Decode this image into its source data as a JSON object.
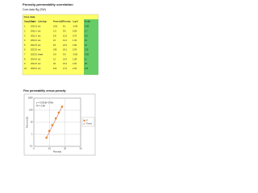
{
  "header": {
    "title": "Porosity-permeability correlation",
    "subtitle": "Core data Rg (SW)"
  },
  "table": {
    "caption": "Core data",
    "columns": [
      "Sample no",
      "Depth",
      "Lithology",
      "Perm (mD)",
      "Porosity",
      "Log K",
      "K calc"
    ],
    "rows": [
      [
        "1",
        "2010.5",
        "sst",
        "0.52",
        "8.1",
        "-0.28",
        "0.48"
      ],
      [
        "2",
        "2011.0",
        "sst",
        "1.9",
        "9.9",
        "0.28",
        "1.7"
      ],
      [
        "3",
        "2011.5",
        "sst",
        "5.8",
        "11.8",
        "0.76",
        "5.9"
      ],
      [
        "4",
        "2012.0",
        "sst",
        "21",
        "14.1",
        "1.32",
        "19"
      ],
      [
        "5",
        "2012.5",
        "sst",
        "63",
        "16.0",
        "1.80",
        "62"
      ],
      [
        "6",
        "2013.0",
        "sst",
        "195",
        "18.1",
        "2.29",
        "210"
      ],
      [
        "7",
        "2013.5",
        "shale",
        "0.9",
        "9.0",
        "-0.05",
        "0.95"
      ],
      [
        "8",
        "2014.0",
        "sst",
        "12",
        "13.0",
        "1.08",
        "11"
      ],
      [
        "9",
        "2014.5",
        "sst",
        "40",
        "15.2",
        "1.60",
        "38"
      ],
      [
        "10",
        "2015.0",
        "sst",
        "110",
        "17.0",
        "2.04",
        "115"
      ]
    ]
  },
  "chart": {
    "type": "scatter",
    "title": "Fine permeability versus porosity",
    "x_label": "Porosity",
    "y_label": "Perm (mD)",
    "equation": "y = 0.0615e^0.45x",
    "r2": "R² = 0.98",
    "series": [
      {
        "name": "K",
        "color": "#e8862a",
        "x": [
          8.1,
          9.9,
          11.8,
          14.1,
          16.0,
          18.1
        ],
        "values": [
          0.52,
          1.9,
          5.8,
          21,
          63,
          195
        ]
      }
    ],
    "trend_name": "Trend",
    "trend_color": "#c0392b",
    "xlim": [
      0,
      30
    ],
    "xticks": [
      0,
      10,
      20,
      30
    ],
    "ylim": [
      0.1,
      1000
    ],
    "yticks": [
      0.1,
      1,
      10,
      100,
      1000
    ],
    "log_y": true,
    "grid": true
  }
}
